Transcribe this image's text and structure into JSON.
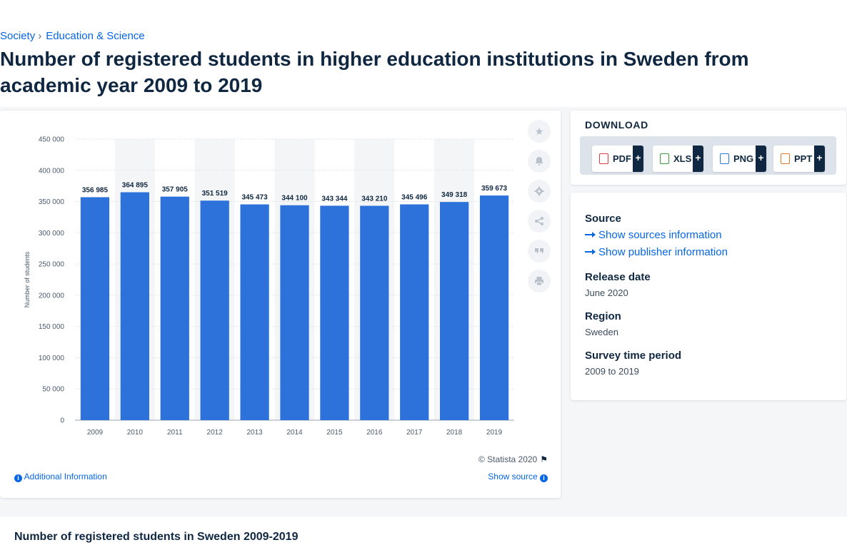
{
  "breadcrumb": {
    "items": [
      "Society",
      "Education & Science"
    ],
    "separator": "›"
  },
  "page_title": "Number of registered students in higher education institutions in Sweden from academic year 2009 to 2019",
  "chart_card": {
    "credit": "© Statista 2020",
    "additional_info": "Additional Information",
    "show_source": "Show source"
  },
  "download": {
    "title": "DOWNLOAD",
    "buttons": [
      {
        "label": "PDF",
        "color": "#e23b3b"
      },
      {
        "label": "XLS",
        "color": "#3a9a3a"
      },
      {
        "label": "PNG",
        "color": "#2b7ad8"
      },
      {
        "label": "PPT",
        "color": "#e07a2b"
      }
    ],
    "plus": "+"
  },
  "meta": {
    "source_heading": "Source",
    "show_sources": "Show sources information",
    "show_publisher": "Show publisher information",
    "release_heading": "Release date",
    "release_value": "June 2020",
    "region_heading": "Region",
    "region_value": "Sweden",
    "period_heading": "Survey time period",
    "period_value": "2009 to 2019"
  },
  "bottom_title": "Number of registered students in Sweden 2009-2019",
  "chart_data": {
    "type": "bar",
    "categories": [
      "2009",
      "2010",
      "2011",
      "2012",
      "2013",
      "2014",
      "2015",
      "2016",
      "2017",
      "2018",
      "2019"
    ],
    "values": [
      356985,
      364895,
      357905,
      351519,
      345473,
      344100,
      343344,
      343210,
      345496,
      349318,
      359673
    ],
    "value_labels": [
      "356 985",
      "364 895",
      "357 905",
      "351 519",
      "345 473",
      "344 100",
      "343 344",
      "343 210",
      "345 496",
      "349 318",
      "359 673"
    ],
    "ylabel": "Number of students",
    "ylim": [
      0,
      450000
    ],
    "y_ticks": [
      0,
      50000,
      100000,
      150000,
      200000,
      250000,
      300000,
      350000,
      400000,
      450000
    ],
    "y_tick_labels": [
      "0",
      "50 000",
      "100 000",
      "150 000",
      "200 000",
      "250 000",
      "300 000",
      "350 000",
      "400 000",
      "450 000"
    ],
    "bar_color": "#2d72da",
    "grid": true
  }
}
